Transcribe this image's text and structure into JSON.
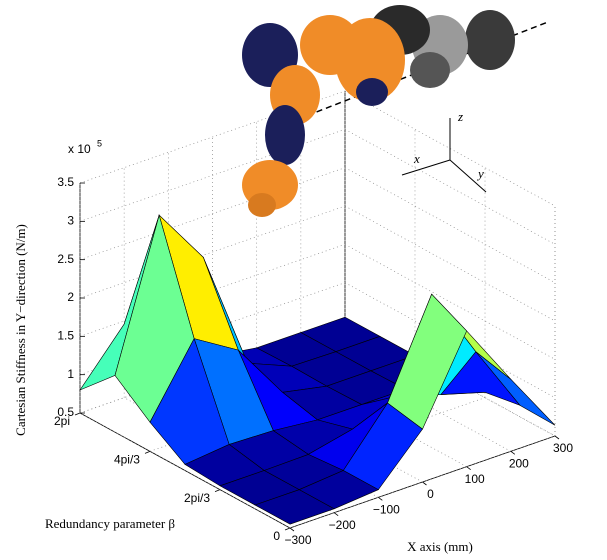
{
  "chart_data": {
    "type": "surface",
    "zlabel": "Cartesian Stiffness in Y−direction (N/m)",
    "xlabel": "X axis (mm)",
    "ylabel": "Redundancy parameter β",
    "z_multiplier": "x 10",
    "z_exponent": "5",
    "annotations": [
      "x",
      "y",
      "z"
    ],
    "x": [
      -300,
      -200,
      -100,
      0,
      100,
      200,
      300
    ],
    "y": [
      0,
      1.047,
      2.094,
      3.142,
      4.189,
      5.236,
      6.283
    ],
    "z": [
      [
        0.55,
        0.55,
        0.6,
        1.19,
        2.27,
        1.44,
        0.64
      ],
      [
        0.55,
        0.55,
        0.6,
        1.28,
        2.5,
        1.55,
        0.65
      ],
      [
        0.55,
        0.55,
        0.56,
        0.69,
        0.92,
        0.74,
        0.57
      ],
      [
        0.58,
        0.64,
        0.62,
        0.56,
        0.56,
        0.56,
        0.55
      ],
      [
        0.88,
        1.77,
        1.42,
        0.67,
        0.55,
        0.55,
        0.55
      ],
      [
        1.24,
        3.13,
        2.38,
        0.8,
        0.56,
        0.55,
        0.55
      ],
      [
        0.8,
        1.46,
        1.2,
        0.64,
        0.55,
        0.55,
        0.55
      ]
    ],
    "xlim": [
      -300,
      300
    ],
    "xticks": [
      {
        "value": -300,
        "label": "−300"
      },
      {
        "value": -200,
        "label": "−200"
      },
      {
        "value": -100,
        "label": "−100"
      },
      0,
      100,
      200,
      300
    ],
    "ylim": [
      0,
      6.283
    ],
    "yticks": [
      0,
      {
        "value": 2.094,
        "label": "2pi/3"
      },
      {
        "value": 4.189,
        "label": "4pi/3"
      },
      {
        "value": 6.283,
        "label": "2pi"
      }
    ],
    "zlim": [
      0.5,
      3.5
    ],
    "zticks": [
      0.5,
      1,
      1.5,
      2,
      2.5,
      3,
      3.5
    ],
    "colormap": "jet",
    "grid": true
  }
}
